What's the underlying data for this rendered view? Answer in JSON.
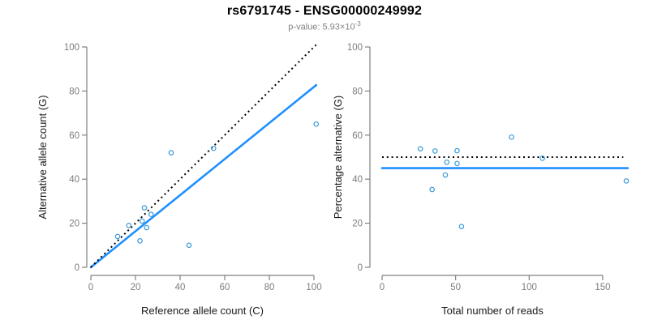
{
  "page": {
    "title": "rs6791745 - ENSG00000249992",
    "subtitle_prefix": "p-value: 5.93×10",
    "subtitle_exponent": "-3"
  },
  "colors": {
    "solid_line_blue": "#1E90FF",
    "point_blue": "#3C9BD9",
    "dotted_line_black": "#000000",
    "axis_gray": "#808080",
    "tick_label_gray": "#7D7D7D",
    "axis_title_black": "#1A1A1A",
    "subtitle_gray": "#828282"
  },
  "chart_data": [
    {
      "type": "scatter",
      "name": "allele-counts-scatter",
      "xlabel": "Reference allele count (C)",
      "ylabel": "Alternative allele count (G)",
      "xlim": [
        0,
        101
      ],
      "ylim": [
        0,
        101
      ],
      "xticks": [
        0,
        20,
        40,
        60,
        80,
        100
      ],
      "yticks": [
        0,
        20,
        40,
        60,
        80,
        100
      ],
      "point_color": "#3C9BD9",
      "points": [
        {
          "x": 12,
          "y": 14
        },
        {
          "x": 17,
          "y": 19
        },
        {
          "x": 22,
          "y": 12
        },
        {
          "x": 23,
          "y": 21
        },
        {
          "x": 24,
          "y": 27
        },
        {
          "x": 25,
          "y": 18
        },
        {
          "x": 27,
          "y": 24
        },
        {
          "x": 36,
          "y": 52
        },
        {
          "x": 44,
          "y": 10
        },
        {
          "x": 55,
          "y": 54
        },
        {
          "x": 101,
          "y": 65
        }
      ],
      "lines": [
        {
          "name": "regression-line",
          "style": "solid",
          "color": "#1E90FF",
          "x1": 0,
          "y1": 0,
          "x2": 101,
          "y2": 82.7
        },
        {
          "name": "identity-line",
          "style": "dotted",
          "color": "#000000",
          "x1": 0,
          "y1": 0,
          "x2": 101,
          "y2": 101
        }
      ]
    },
    {
      "type": "scatter",
      "name": "percentage-vs-reads-scatter",
      "xlabel": "Total number of reads",
      "ylabel": "Percentage alternative (G)",
      "xlim": [
        0,
        167
      ],
      "ylim": [
        0,
        100
      ],
      "xticks": [
        0,
        50,
        100,
        150
      ],
      "yticks": [
        0,
        20,
        40,
        60,
        80,
        100
      ],
      "point_color": "#3C9BD9",
      "points": [
        {
          "x": 26,
          "y": 53.8
        },
        {
          "x": 36,
          "y": 52.8
        },
        {
          "x": 34,
          "y": 35.3
        },
        {
          "x": 44,
          "y": 47.7
        },
        {
          "x": 51,
          "y": 52.9
        },
        {
          "x": 43,
          "y": 41.9
        },
        {
          "x": 51,
          "y": 47.1
        },
        {
          "x": 88,
          "y": 59.1
        },
        {
          "x": 54,
          "y": 18.5
        },
        {
          "x": 109,
          "y": 49.5
        },
        {
          "x": 166,
          "y": 39.2
        }
      ],
      "lines": [
        {
          "name": "mean-percentage-line",
          "style": "solid",
          "color": "#1E90FF",
          "x1": 0,
          "y1": 45,
          "x2": 167,
          "y2": 45
        },
        {
          "name": "expected-50-percent-line",
          "style": "dotted",
          "color": "#000000",
          "x1": 0,
          "y1": 50,
          "x2": 164,
          "y2": 50
        }
      ]
    }
  ]
}
